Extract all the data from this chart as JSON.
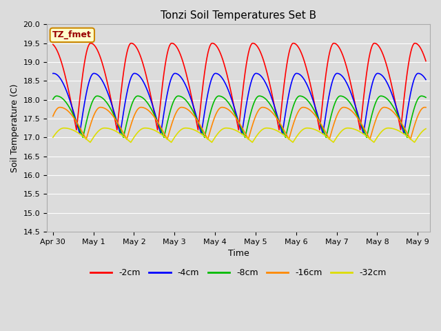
{
  "title": "Tonzi Soil Temperatures Set B",
  "xlabel": "Time",
  "ylabel": "Soil Temperature (C)",
  "ylim": [
    14.5,
    20.0
  ],
  "yticks": [
    14.5,
    15.0,
    15.5,
    16.0,
    16.5,
    17.0,
    17.5,
    18.0,
    18.5,
    19.0,
    19.5,
    20.0
  ],
  "bg_color": "#dcdcdc",
  "plot_bg_color": "#dcdcdc",
  "grid_color": "#ffffff",
  "annotation_label": "TZ_fmet",
  "annotation_bg": "#ffffcc",
  "annotation_border": "#cc8800",
  "xtick_labels": [
    "Apr 30",
    "May 1",
    "May 2",
    "May 3",
    "May 4",
    "May 5",
    "May 6",
    "May 7",
    "May 8",
    "May 9"
  ],
  "xtick_positions": [
    0,
    1,
    2,
    3,
    4,
    5,
    6,
    7,
    8,
    9
  ],
  "series_colors": {
    "-2cm": "#ff0000",
    "-4cm": "#0000ff",
    "-8cm": "#00bb00",
    "-16cm": "#ff8800",
    "-32cm": "#dddd00"
  },
  "series_params": {
    "-2cm": {
      "amplitude": 2.3,
      "mean": 17.2,
      "phase": 0.58,
      "skew": 3.0
    },
    "-4cm": {
      "amplitude": 1.6,
      "mean": 17.1,
      "phase": 0.66,
      "skew": 2.5
    },
    "-8cm": {
      "amplitude": 1.1,
      "mean": 17.0,
      "phase": 0.74,
      "skew": 2.0
    },
    "-16cm": {
      "amplitude": 0.85,
      "mean": 16.95,
      "phase": 0.82,
      "skew": 1.5
    },
    "-32cm": {
      "amplitude": 0.38,
      "mean": 16.87,
      "phase": 0.92,
      "skew": 0.5
    }
  }
}
